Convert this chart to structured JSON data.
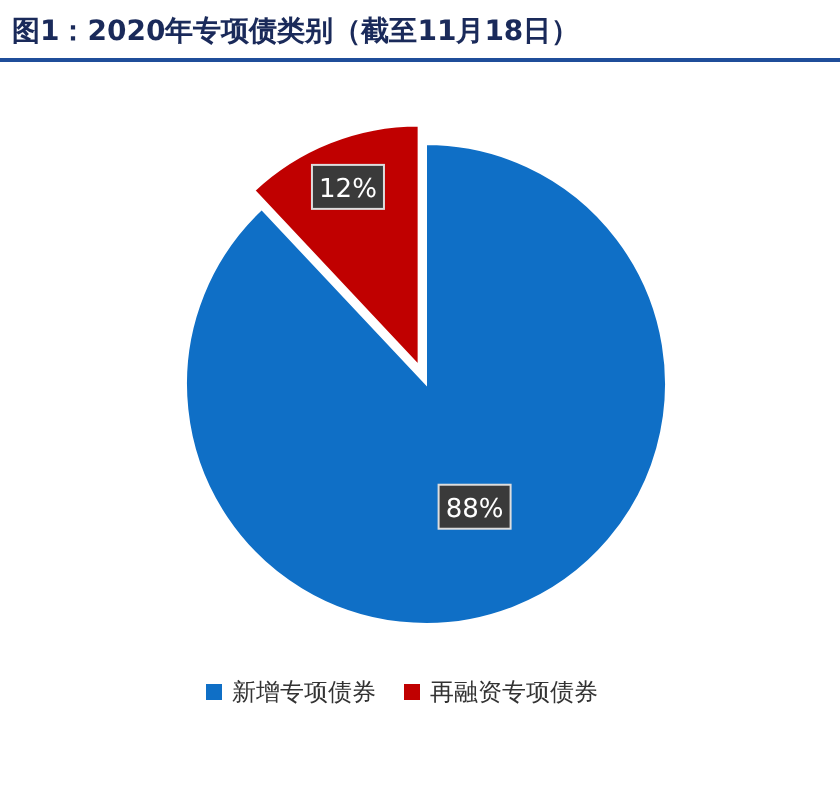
{
  "chart_data": {
    "type": "pie",
    "title": "图1：2020年专项债类别（截至11月18日）",
    "categories": [
      "新增专项债券",
      "再融资专项债券"
    ],
    "values": [
      88,
      12
    ],
    "colors": [
      "#0f6fc6",
      "#c00000"
    ],
    "value_labels": [
      "88%",
      "12%"
    ],
    "legend": "bottom"
  }
}
